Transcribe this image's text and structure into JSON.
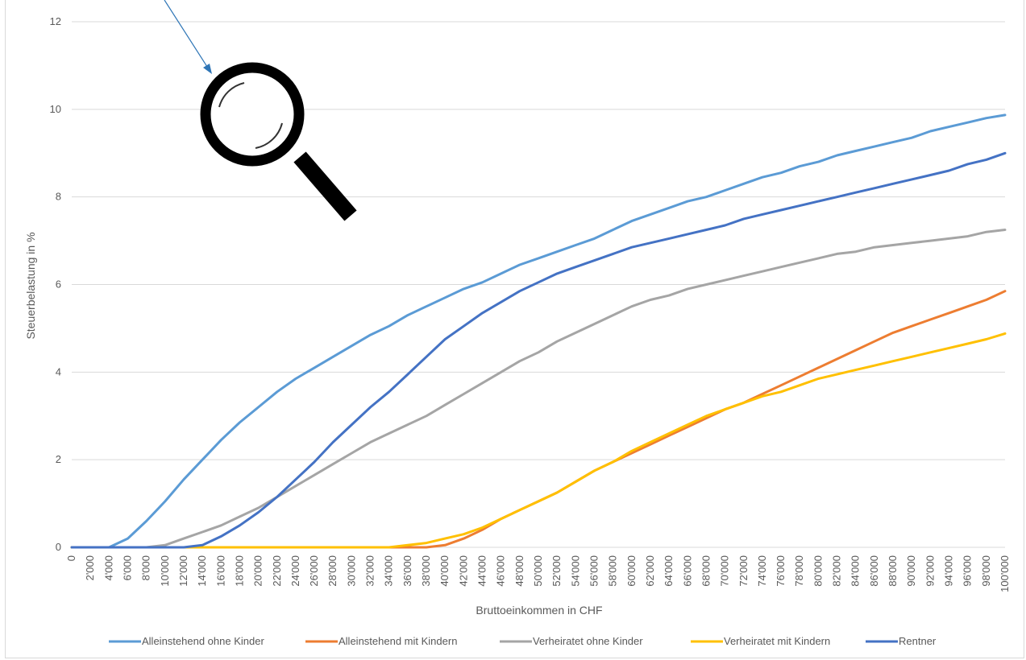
{
  "chart_data": {
    "type": "line",
    "title": "",
    "xlabel": "Bruttoeinkommen in CHF",
    "ylabel": "Steuerbelastung in %",
    "ylim": [
      0,
      12
    ],
    "yticks": [
      "0",
      "2",
      "4",
      "6",
      "8",
      "10",
      "12"
    ],
    "grid": "horizontal",
    "legend_position": "bottom",
    "x_tick_labels": [
      "0",
      "2'000",
      "4'000",
      "6'000",
      "8'000",
      "10'000",
      "12'000",
      "14'000",
      "16'000",
      "18'000",
      "20'000",
      "22'000",
      "24'000",
      "26'000",
      "28'000",
      "30'000",
      "32'000",
      "34'000",
      "36'000",
      "38'000",
      "40'000",
      "42'000",
      "44'000",
      "46'000",
      "48'000",
      "50'000",
      "52'000",
      "54'000",
      "56'000",
      "58'000",
      "60'000",
      "62'000",
      "64'000",
      "66'000",
      "68'000",
      "70'000",
      "72'000",
      "74'000",
      "76'000",
      "78'000",
      "80'000",
      "82'000",
      "84'000",
      "86'000",
      "88'000",
      "90'000",
      "92'000",
      "94'000",
      "96'000",
      "98'000",
      "100'000"
    ],
    "x": [
      0,
      2000,
      4000,
      6000,
      8000,
      10000,
      12000,
      14000,
      16000,
      18000,
      20000,
      22000,
      24000,
      26000,
      28000,
      30000,
      32000,
      34000,
      36000,
      38000,
      40000,
      42000,
      44000,
      46000,
      48000,
      50000,
      52000,
      54000,
      56000,
      58000,
      60000,
      62000,
      64000,
      66000,
      68000,
      70000,
      72000,
      74000,
      76000,
      78000,
      80000,
      82000,
      84000,
      86000,
      88000,
      90000,
      92000,
      94000,
      96000,
      98000,
      100000
    ],
    "series": [
      {
        "name": "Alleinstehend ohne Kinder",
        "color": "#5b9bd5",
        "values": [
          0,
          0,
          0,
          0.2,
          0.6,
          1.05,
          1.55,
          2.0,
          2.45,
          2.85,
          3.2,
          3.55,
          3.85,
          4.1,
          4.35,
          4.6,
          4.85,
          5.05,
          5.3,
          5.5,
          5.7,
          5.9,
          6.05,
          6.25,
          6.45,
          6.6,
          6.75,
          6.9,
          7.05,
          7.25,
          7.45,
          7.6,
          7.75,
          7.9,
          8.0,
          8.15,
          8.3,
          8.45,
          8.55,
          8.7,
          8.8,
          8.95,
          9.05,
          9.15,
          9.25,
          9.35,
          9.5,
          9.6,
          9.7,
          9.8,
          9.87
        ]
      },
      {
        "name": "Alleinstehend  mit Kindern",
        "color": "#ed7d31",
        "values": [
          0,
          0,
          0,
          0,
          0,
          0,
          0,
          0,
          0,
          0,
          0,
          0,
          0,
          0,
          0,
          0,
          0,
          0,
          0,
          0,
          0.05,
          0.2,
          0.4,
          0.65,
          0.85,
          1.05,
          1.25,
          1.5,
          1.75,
          1.95,
          2.15,
          2.35,
          2.55,
          2.75,
          2.95,
          3.15,
          3.3,
          3.5,
          3.7,
          3.9,
          4.1,
          4.3,
          4.5,
          4.7,
          4.9,
          5.05,
          5.2,
          5.35,
          5.5,
          5.65,
          5.85
        ]
      },
      {
        "name": "Verheiratet ohne Kinder",
        "color": "#a5a5a5",
        "values": [
          0,
          0,
          0,
          0,
          0,
          0.05,
          0.2,
          0.35,
          0.5,
          0.7,
          0.9,
          1.15,
          1.4,
          1.65,
          1.9,
          2.15,
          2.4,
          2.6,
          2.8,
          3.0,
          3.25,
          3.5,
          3.75,
          4.0,
          4.25,
          4.45,
          4.7,
          4.9,
          5.1,
          5.3,
          5.5,
          5.65,
          5.75,
          5.9,
          6.0,
          6.1,
          6.2,
          6.3,
          6.4,
          6.5,
          6.6,
          6.7,
          6.75,
          6.85,
          6.9,
          6.95,
          7.0,
          7.05,
          7.1,
          7.2,
          7.25
        ]
      },
      {
        "name": "Verheiratet mit Kindern",
        "color": "#ffc000",
        "values": [
          0,
          0,
          0,
          0,
          0,
          0,
          0,
          0,
          0,
          0,
          0,
          0,
          0,
          0,
          0,
          0,
          0,
          0,
          0.05,
          0.1,
          0.2,
          0.3,
          0.45,
          0.65,
          0.85,
          1.05,
          1.25,
          1.5,
          1.75,
          1.95,
          2.2,
          2.4,
          2.6,
          2.8,
          3.0,
          3.15,
          3.3,
          3.45,
          3.55,
          3.7,
          3.85,
          3.95,
          4.05,
          4.15,
          4.25,
          4.35,
          4.45,
          4.55,
          4.65,
          4.75,
          4.88
        ]
      },
      {
        "name": "Rentner",
        "color": "#4472c4",
        "values": [
          0,
          0,
          0,
          0,
          0,
          0,
          0,
          0.05,
          0.25,
          0.5,
          0.8,
          1.15,
          1.55,
          1.95,
          2.4,
          2.8,
          3.2,
          3.55,
          3.95,
          4.35,
          4.75,
          5.05,
          5.35,
          5.6,
          5.85,
          6.05,
          6.25,
          6.4,
          6.55,
          6.7,
          6.85,
          6.95,
          7.05,
          7.15,
          7.25,
          7.35,
          7.5,
          7.6,
          7.7,
          7.8,
          7.9,
          8.0,
          8.1,
          8.2,
          8.3,
          8.4,
          8.5,
          8.6,
          8.75,
          8.85,
          9.0
        ]
      }
    ]
  },
  "overlay": {
    "magnifier_icon": "magnifying-glass",
    "arrow_color": "#2e75b6"
  }
}
